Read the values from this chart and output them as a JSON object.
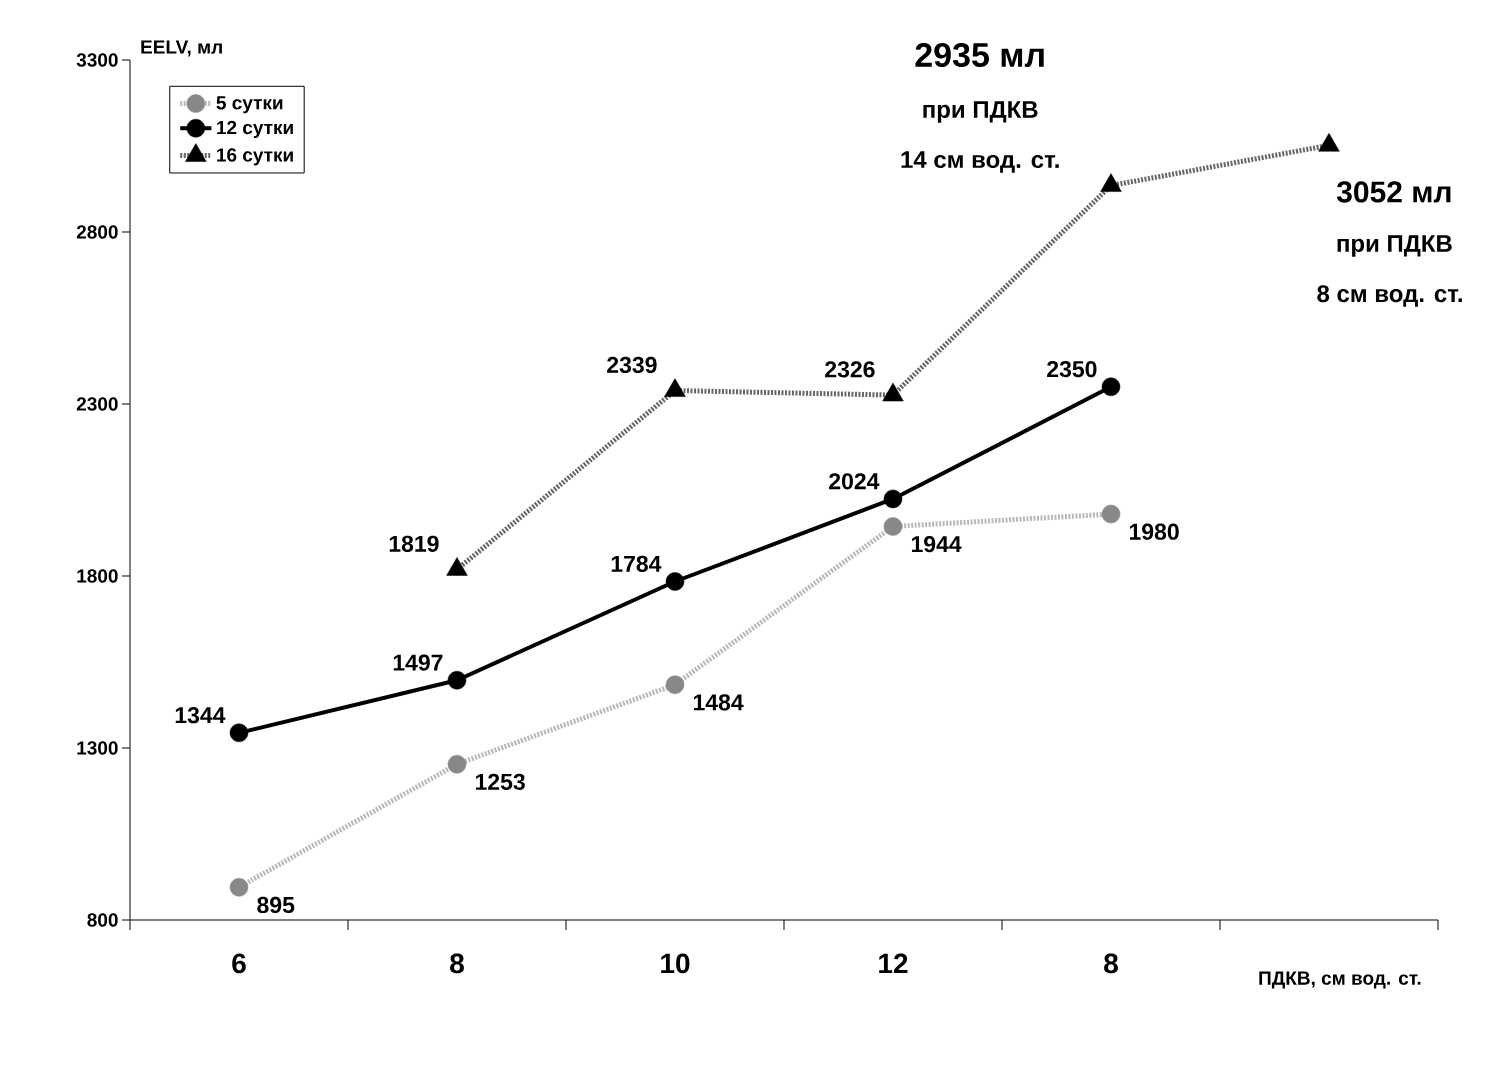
{
  "chart_data": {
    "type": "line",
    "xlabel": "ПДКВ, см вод. ст.",
    "ylabel": "EELV, мл",
    "categories": [
      "6",
      "8",
      "10",
      "12",
      "8",
      null
    ],
    "ylim": [
      800,
      3300
    ],
    "yticks": [
      800,
      1300,
      1800,
      2300,
      2800,
      3300
    ],
    "legend": "top left",
    "data_labels": true,
    "series": [
      {
        "name": "5 сутки",
        "color": "#888888",
        "marker": "circle",
        "line_style": "dotted",
        "values": [
          895,
          1253,
          1484,
          1944,
          1980,
          null
        ],
        "value_labels": [
          "895",
          "1253",
          "1484",
          "1944",
          "1980",
          null
        ]
      },
      {
        "name": "12 сутки",
        "color": "#000000",
        "marker": "circle",
        "line_style": "solid",
        "values": [
          1344,
          1497,
          1784,
          2024,
          2350,
          null
        ],
        "value_labels": [
          "1344",
          "1497",
          "1784",
          "2024",
          "2350",
          null
        ]
      },
      {
        "name": "16 сутки",
        "color": "#000000",
        "marker": "triangle",
        "line_style": "dotted",
        "values": [
          null,
          1819,
          2339,
          2326,
          2935,
          3052
        ],
        "value_labels": [
          null,
          "1819",
          "2339",
          "2326",
          null,
          null
        ]
      }
    ],
    "annotations": [
      "2935 мл",
      "при ПДКВ",
      "14 см вод. ст.",
      "3052 мл",
      "при ПДКВ",
      "8 см вод. ст."
    ]
  }
}
